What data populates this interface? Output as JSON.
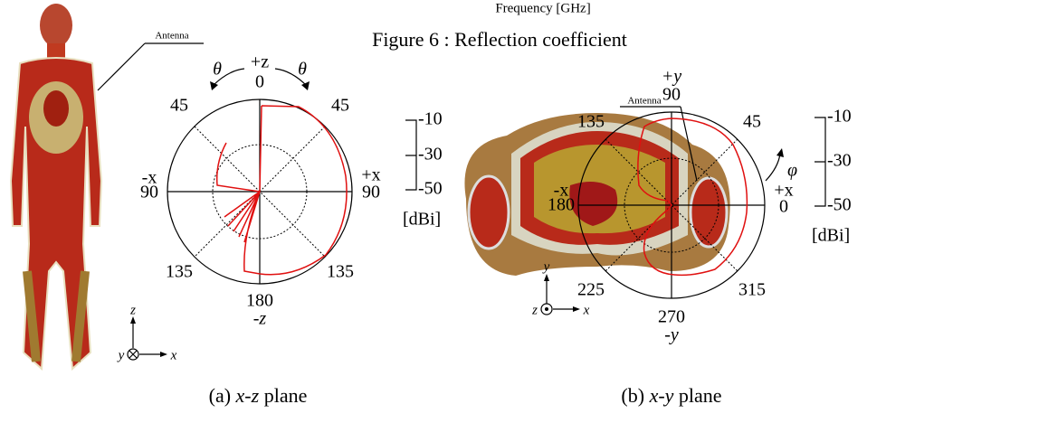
{
  "header": {
    "axis_label": "Frequency [GHz]",
    "figure_title": "Figure 6 : Reflection coefficient"
  },
  "panel_a": {
    "antenna": "Antenna",
    "top_axis": "+z",
    "top_angle": "0",
    "theta_left": "θ",
    "theta_right": "θ",
    "angle_45_left": "45",
    "angle_45_right": "45",
    "left_axis": "-x",
    "left_angle": "90",
    "right_axis": "+x",
    "right_angle": "90",
    "angle_135_left": "135",
    "angle_135_right": "135",
    "bottom_angle": "180",
    "bottom_axis": "-z",
    "scale": [
      "-10",
      "-30",
      "-50"
    ],
    "unit": "[dBi]",
    "coord": {
      "up": "z",
      "into": "y",
      "right": "x"
    },
    "caption": {
      "prefix": "(a) ",
      "plane": "x-z",
      "suffix": " plane"
    }
  },
  "panel_b": {
    "antenna": "Antenna",
    "top_axis": "+y",
    "top_angle": "90",
    "angle_135": "135",
    "angle_45": "45",
    "phi": "φ",
    "left_axis": "-x",
    "left_angle": "180",
    "right_axis": "+x",
    "right_angle": "0",
    "angle_225": "225",
    "angle_315": "315",
    "bottom_angle": "270",
    "bottom_axis": "-y",
    "scale": [
      "-10",
      "-30",
      "-50"
    ],
    "unit": "[dBi]",
    "coord": {
      "up": "y",
      "out": "z",
      "right": "x"
    },
    "caption": {
      "prefix": "(b) ",
      "plane": "x-y",
      "suffix": " plane"
    }
  }
}
